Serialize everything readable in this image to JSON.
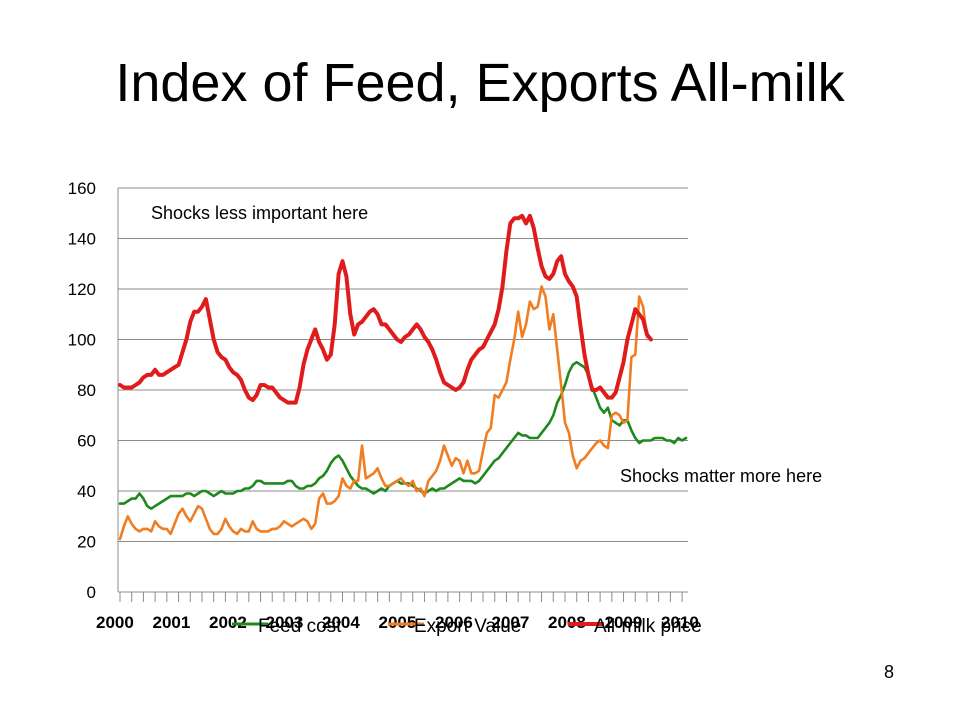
{
  "slide": {
    "title": "Index of Feed, Exports All-milk",
    "page_number": "8"
  },
  "chart_data": {
    "type": "line",
    "title": "",
    "xlabel": "",
    "ylabel": "",
    "ylim": [
      0,
      160
    ],
    "yticks": [
      0,
      20,
      40,
      60,
      80,
      100,
      120,
      140,
      160
    ],
    "x_tick_labels": [
      "2000",
      "2001",
      "2002",
      "2003",
      "2004",
      "2005",
      "2006",
      "2007",
      "2008",
      "2009",
      "2010"
    ],
    "x_start": "2000-01",
    "grid": true,
    "legend_position": "bottom",
    "annotations": [
      "Shocks less important here",
      "Shocks matter more here"
    ],
    "series": [
      {
        "name": "Feed cost",
        "color": "#1e8a1e",
        "values": [
          35,
          35,
          36,
          37,
          37,
          39,
          37,
          34,
          33,
          34,
          35,
          36,
          37,
          38,
          38,
          38,
          38,
          39,
          39,
          38,
          39,
          40,
          40,
          39,
          38,
          39,
          40,
          39,
          39,
          39,
          40,
          40,
          41,
          41,
          42,
          44,
          44,
          43,
          43,
          43,
          43,
          43,
          43,
          44,
          44,
          42,
          41,
          41,
          42,
          42,
          43,
          45,
          46,
          48,
          51,
          53,
          54,
          52,
          49,
          46,
          44,
          42,
          41,
          41,
          40,
          39,
          40,
          41,
          40,
          42,
          43,
          44,
          43,
          43,
          43,
          42,
          41,
          40,
          39,
          40,
          41,
          40,
          41,
          41,
          42,
          43,
          44,
          45,
          44,
          44,
          44,
          43,
          44,
          46,
          48,
          50,
          52,
          53,
          55,
          57,
          59,
          61,
          63,
          62,
          62,
          61,
          61,
          61,
          63,
          65,
          67,
          70,
          75,
          78,
          82,
          87,
          90,
          91,
          90,
          89,
          86,
          81,
          77,
          73,
          71,
          73,
          68,
          67,
          66,
          68,
          68,
          64,
          61,
          59,
          60,
          60,
          60,
          61,
          61,
          61,
          60,
          60,
          59,
          61,
          60,
          61
        ]
      },
      {
        "name": "Export Value",
        "color": "#f07d22",
        "values": [
          21,
          26,
          30,
          27,
          25,
          24,
          25,
          25,
          24,
          28,
          26,
          25,
          25,
          23,
          27,
          31,
          33,
          30,
          28,
          31,
          34,
          33,
          29,
          25,
          23,
          23,
          25,
          29,
          26,
          24,
          23,
          25,
          24,
          24,
          28,
          25,
          24,
          24,
          24,
          25,
          25,
          26,
          28,
          27,
          26,
          27,
          28,
          29,
          28,
          25,
          27,
          37,
          39,
          35,
          35,
          36,
          38,
          45,
          42,
          41,
          44,
          44,
          58,
          45,
          46,
          47,
          49,
          45,
          42,
          42,
          43,
          44,
          45,
          43,
          42,
          44,
          40,
          41,
          38,
          44,
          46,
          48,
          52,
          58,
          54,
          50,
          53,
          52,
          47,
          52,
          47,
          47,
          48,
          56,
          63,
          65,
          78,
          77,
          80,
          83,
          92,
          100,
          111,
          101,
          106,
          115,
          112,
          113,
          121,
          117,
          104,
          110,
          96,
          82,
          67,
          63,
          54,
          49,
          52,
          53,
          55,
          57,
          59,
          60,
          58,
          57,
          70,
          71,
          70,
          67,
          68,
          93,
          94,
          117,
          113,
          101
        ]
      },
      {
        "name": "All-milk price",
        "color": "#e01b1b",
        "values": [
          82,
          81,
          81,
          81,
          82,
          83,
          85,
          86,
          86,
          88,
          86,
          86,
          87,
          88,
          89,
          90,
          95,
          100,
          107,
          111,
          111,
          113,
          116,
          108,
          100,
          95,
          93,
          92,
          89,
          87,
          86,
          84,
          80,
          77,
          76,
          78,
          82,
          82,
          81,
          81,
          79,
          77,
          76,
          75,
          75,
          75,
          81,
          90,
          96,
          100,
          104,
          99,
          96,
          92,
          94,
          106,
          126,
          131,
          125,
          110,
          102,
          106,
          107,
          109,
          111,
          112,
          110,
          106,
          106,
          104,
          102,
          100,
          99,
          101,
          102,
          104,
          106,
          104,
          101,
          99,
          96,
          92,
          87,
          83,
          82,
          81,
          80,
          81,
          83,
          88,
          92,
          94,
          96,
          97,
          100,
          103,
          106,
          112,
          121,
          135,
          146,
          148,
          148,
          149,
          146,
          149,
          144,
          136,
          129,
          125,
          124,
          126,
          131,
          133,
          126,
          123,
          121,
          117,
          105,
          94,
          86,
          80,
          80,
          81,
          79,
          77,
          77,
          79,
          85,
          91,
          100,
          106,
          112,
          110,
          108,
          102,
          100
        ]
      }
    ]
  }
}
